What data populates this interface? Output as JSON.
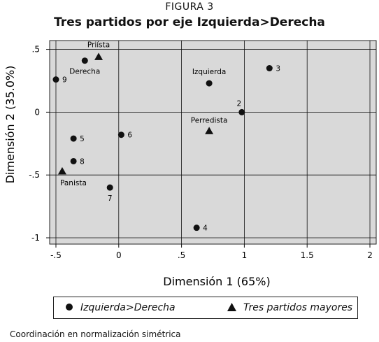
{
  "figure_label": "FIGURA 3",
  "footnote": "Coordinación en normalización simétrica",
  "chart_data": {
    "type": "scatter",
    "title": "Tres partidos por eje Izquierda>Derecha",
    "xlabel": "Dimensión 1 (65%)",
    "ylabel": "Dimensión 2 (35.0%)",
    "xlim": [
      -0.55,
      2.05
    ],
    "ylim": [
      -1.05,
      0.57
    ],
    "x_ticks": [
      -0.5,
      0,
      0.5,
      1,
      1.5,
      2
    ],
    "x_tick_labels": [
      "-.5",
      "0",
      ".5",
      "1",
      "1.5",
      "2"
    ],
    "y_ticks": [
      0.5,
      0,
      -0.5,
      -1
    ],
    "y_tick_labels": [
      ".5",
      "0",
      "-.5",
      "-1"
    ],
    "grid": true,
    "legend_position": "bottom",
    "series": [
      {
        "name": "Izquierda>Derecha",
        "marker": "circle",
        "points": [
          {
            "x": -0.27,
            "y": 0.41,
            "label": "Derecha"
          },
          {
            "x": 0.72,
            "y": 0.23,
            "label": "Izquierda"
          },
          {
            "x": 1.2,
            "y": 0.35,
            "label": "3"
          },
          {
            "x": 0.98,
            "y": 0.0,
            "label": "2"
          },
          {
            "x": -0.5,
            "y": 0.26,
            "label": "9"
          },
          {
            "x": -0.36,
            "y": -0.21,
            "label": "5"
          },
          {
            "x": 0.02,
            "y": -0.18,
            "label": "6"
          },
          {
            "x": -0.36,
            "y": -0.39,
            "label": "8"
          },
          {
            "x": -0.07,
            "y": -0.6,
            "label": "7"
          },
          {
            "x": 0.62,
            "y": -0.92,
            "label": "4"
          }
        ]
      },
      {
        "name": "Tres partidos mayores",
        "marker": "triangle",
        "points": [
          {
            "x": -0.16,
            "y": 0.44,
            "label": "Priísta"
          },
          {
            "x": 0.72,
            "y": -0.15,
            "label": "Perredista"
          },
          {
            "x": -0.45,
            "y": -0.47,
            "label": "Panista"
          }
        ]
      }
    ]
  }
}
